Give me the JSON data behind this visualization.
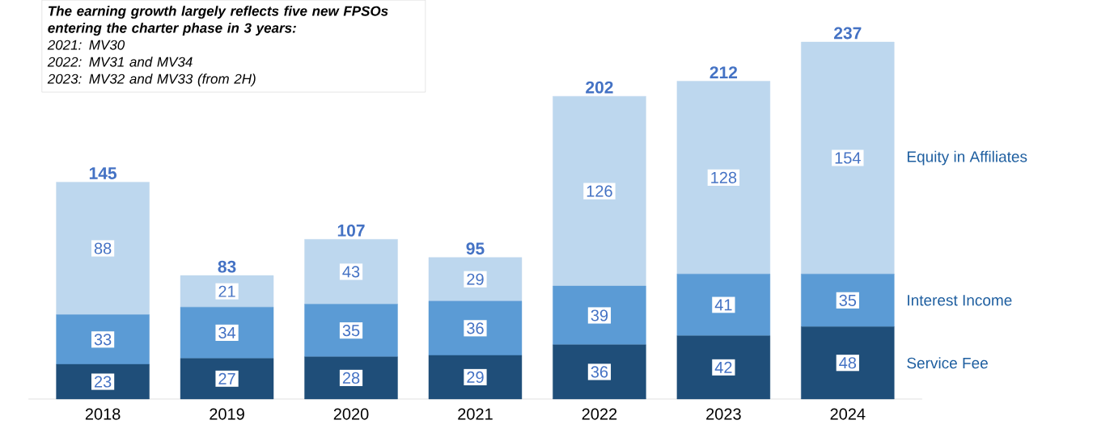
{
  "chart_data": {
    "type": "bar",
    "stacked": true,
    "data_labels": true,
    "categories": [
      "2018",
      "2019",
      "2020",
      "2021",
      "2022",
      "2023",
      "2024"
    ],
    "series": [
      {
        "name": "Service Fee",
        "color": "#1f4e79",
        "values": [
          23,
          27,
          28,
          29,
          36,
          42,
          48
        ]
      },
      {
        "name": "Interest Income",
        "color": "#5b9bd5",
        "values": [
          33,
          34,
          35,
          36,
          39,
          41,
          35
        ]
      },
      {
        "name": "Equity in Affiliates",
        "color": "#bdd7ee",
        "values": [
          88,
          21,
          43,
          29,
          126,
          128,
          154
        ]
      }
    ],
    "totals": [
      "145",
      "83",
      "107",
      "95",
      "202",
      "212",
      "237"
    ],
    "annotations": [
      "The earning growth largely reflects five new FPSOs entering the charter phase in 3 years:",
      "2021: MV30",
      "2022: MV31 and MV34",
      "2023: MV32 and MV33 (from 2H)"
    ]
  }
}
